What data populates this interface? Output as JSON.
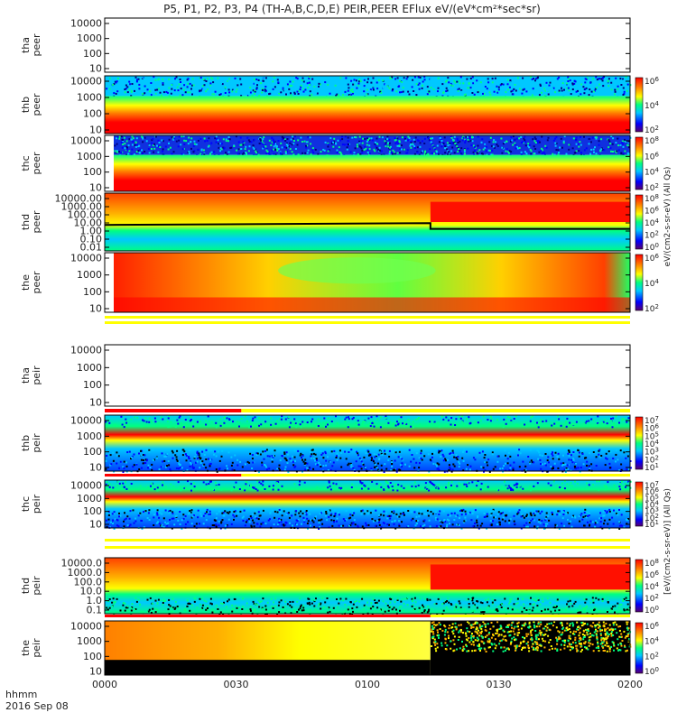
{
  "title": "P5, P1, P2, P3, P4 (TH-A,B,C,D,E) PEIR,PEER EFlux eV/(eV*cm²*sec*sr)",
  "footer": {
    "axis_label": "hhmm",
    "date": "2016 Sep 08"
  },
  "colorbar_labels": {
    "peer": "eV/(cm2-s-sr-eV) (All Qs)",
    "peir": "[eV/(cm2-s-sr-eV)] (All Qs)"
  },
  "colors": {
    "background": "#ffffff",
    "frame": "#000000",
    "status_yellow": "#ffff00",
    "status_red": "#ff0000"
  },
  "chart_data": {
    "type": "heatmap",
    "x_ticks": [
      "0000",
      "0030",
      "0100",
      "0130",
      "0200"
    ],
    "xlim": [
      "0000",
      "0200"
    ],
    "panels": [
      {
        "id": "tha-peer",
        "label": "tha\npeer",
        "ytick_labels": [
          "10000",
          "1000",
          "100",
          "10"
        ],
        "ylim": [
          10,
          20000
        ],
        "yscale": "log",
        "has_data": false
      },
      {
        "id": "thb-peer",
        "label": "thb\npeer",
        "ytick_labels": [
          "10000",
          "1000",
          "100",
          "10"
        ],
        "ylim": [
          10,
          20000
        ],
        "yscale": "log",
        "colorbar_exponents": [
          "6",
          "4",
          "2"
        ],
        "has_data": true
      },
      {
        "id": "thc-peer",
        "label": "thc\npeer",
        "ytick_labels": [
          "10000",
          "1000",
          "100",
          "10"
        ],
        "ylim": [
          10,
          20000
        ],
        "yscale": "log",
        "colorbar_exponents": [
          "8",
          "6",
          "4",
          "2"
        ],
        "has_data": true
      },
      {
        "id": "thd-peer",
        "label": "thd\npeer",
        "ytick_labels": [
          "10000.00",
          "1000.00",
          "100.00",
          "10.00",
          "1.00",
          "0.10",
          "0.01"
        ],
        "ylim": [
          0.01,
          20000
        ],
        "yscale": "log",
        "colorbar_exponents": [
          "8",
          "6",
          "4",
          "2",
          "0"
        ],
        "has_data": true
      },
      {
        "id": "the-peer",
        "label": "the\npeer",
        "ytick_labels": [
          "10000",
          "1000",
          "100",
          "10"
        ],
        "ylim": [
          10,
          20000
        ],
        "yscale": "log",
        "colorbar_exponents": [
          "6",
          "4",
          "2"
        ],
        "has_data": true
      },
      {
        "id": "tha-peir",
        "label": "tha\npeir",
        "ytick_labels": [
          "10000",
          "1000",
          "100",
          "10"
        ],
        "ylim": [
          10,
          20000
        ],
        "yscale": "log",
        "has_data": false
      },
      {
        "id": "thb-peir",
        "label": "thb\npeir",
        "ytick_labels": [
          "10000",
          "1000",
          "100",
          "10"
        ],
        "ylim": [
          10,
          20000
        ],
        "yscale": "log",
        "colorbar_exponents": [
          "7",
          "6",
          "5",
          "4",
          "3",
          "2",
          "1"
        ],
        "has_data": true
      },
      {
        "id": "thc-peir",
        "label": "thc\npeir",
        "ytick_labels": [
          "10000",
          "1000",
          "100",
          "10"
        ],
        "ylim": [
          10,
          20000
        ],
        "yscale": "log",
        "colorbar_exponents": [
          "7",
          "6",
          "5",
          "4",
          "3",
          "2",
          "1"
        ],
        "has_data": true
      },
      {
        "id": "thd-peir",
        "label": "thd\npeir",
        "ytick_labels": [
          "10000.0",
          "1000.0",
          "100.0",
          "10.0",
          "1.0",
          "0.1"
        ],
        "ylim": [
          0.1,
          20000
        ],
        "yscale": "log",
        "colorbar_exponents": [
          "8",
          "6",
          "4",
          "2",
          "0"
        ],
        "has_data": true
      },
      {
        "id": "the-peir",
        "label": "the\npeir",
        "ytick_labels": [
          "10000",
          "1000",
          "100",
          "10"
        ],
        "ylim": [
          10,
          20000
        ],
        "yscale": "log",
        "colorbar_exponents": [
          "6",
          "4",
          "2",
          "0"
        ],
        "has_data": true
      }
    ],
    "grid": false
  }
}
